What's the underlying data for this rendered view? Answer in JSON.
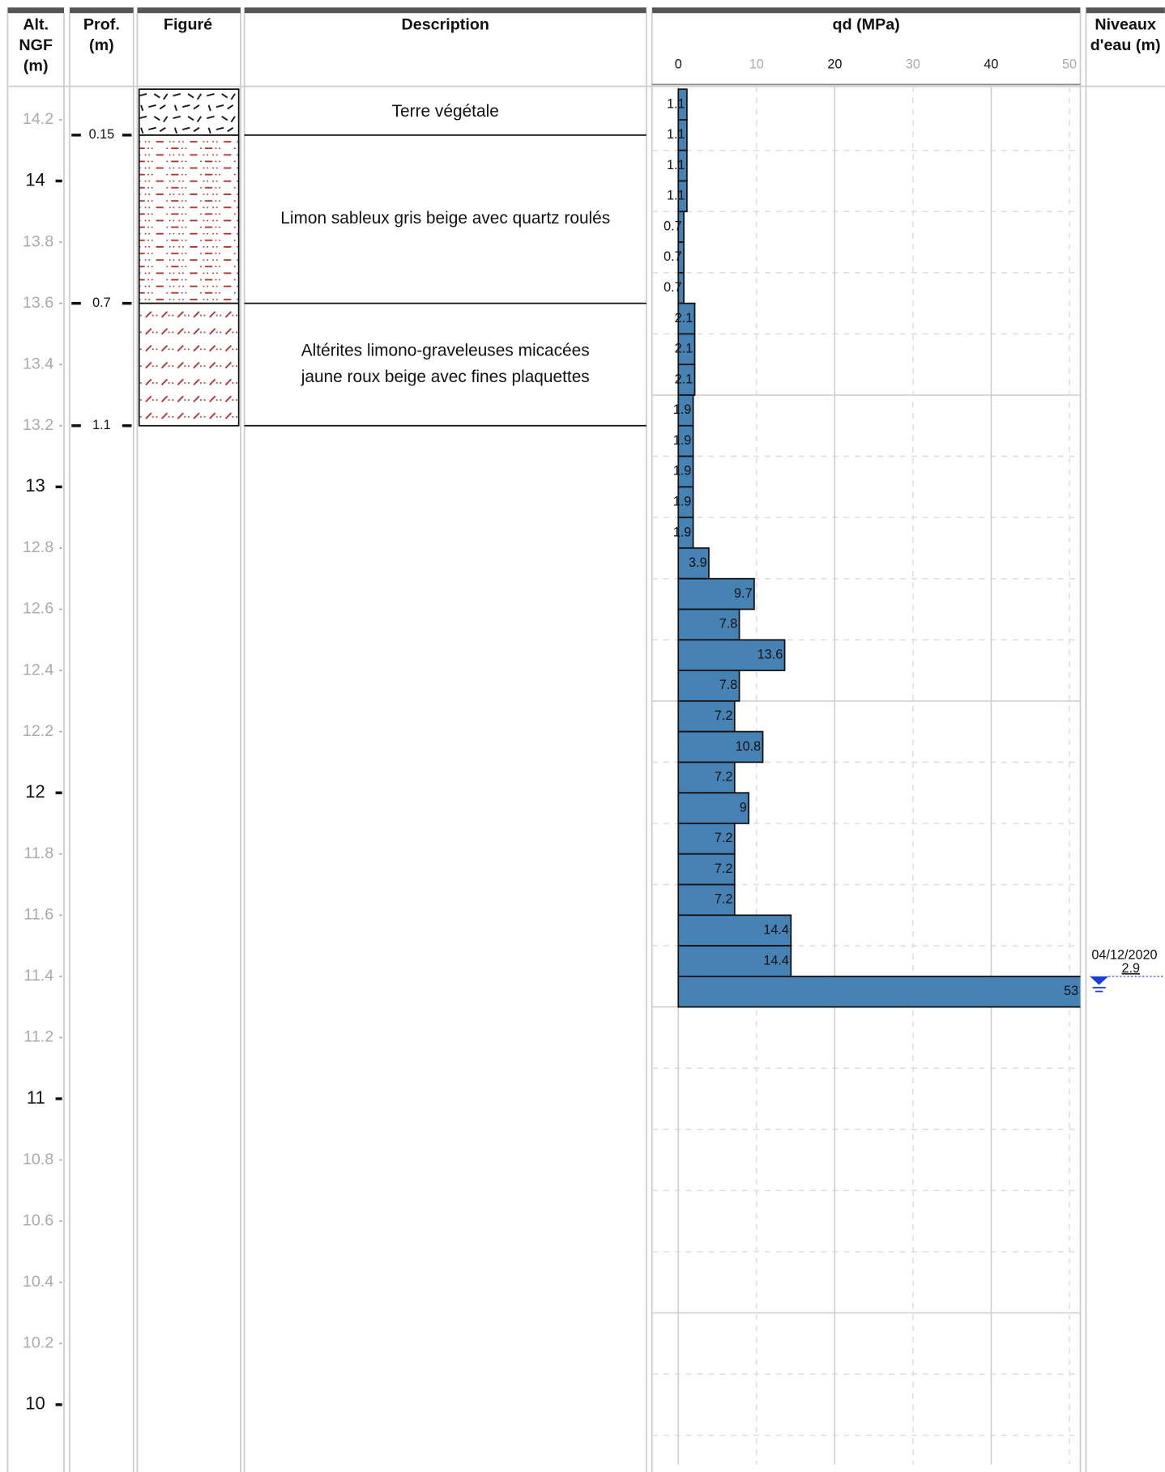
{
  "columns": {
    "altitude": [
      "Alt.",
      "NGF",
      "(m)"
    ],
    "depth": [
      "Prof.",
      "(m)"
    ],
    "figure": "Figuré",
    "description": "Description",
    "qd": "qd (MPa)",
    "water": [
      "Niveaux",
      "d'eau (m)"
    ]
  },
  "altitude_axis": {
    "ylim": [
      14.3,
      9.78
    ],
    "yticks": [
      14.2,
      14,
      13.8,
      13.6,
      13.4,
      13.2,
      13,
      12.8,
      12.6,
      12.4,
      12.2,
      12,
      11.8,
      11.6,
      11.4,
      11.2,
      11,
      10.8,
      10.6,
      10.4,
      10.2,
      10
    ]
  },
  "layers": [
    {
      "depth": 0.15,
      "description": [
        "Terre végétale"
      ]
    },
    {
      "depth": 0.7,
      "description": [
        "Limon sableux gris beige avec quartz roulés"
      ]
    },
    {
      "depth": 1.1,
      "description": [
        "Altérites limono-graveleuses micacées",
        "jaune roux beige avec fines plaquettes"
      ]
    }
  ],
  "qd_chart": {
    "type": "bar",
    "xlim": [
      0,
      51.4
    ],
    "xticks": [
      0,
      10,
      20,
      30,
      40,
      50
    ],
    "color": "#4682b4",
    "values": [
      1.1,
      1.1,
      1.1,
      1.1,
      0.7,
      0.7,
      0.7,
      2.1,
      2.1,
      2.1,
      1.9,
      1.9,
      1.9,
      1.9,
      1.9,
      3.9,
      9.7,
      7.8,
      13.6,
      7.8,
      7.2,
      10.8,
      7.2,
      9,
      7.2,
      7.2,
      7.2,
      14.4,
      14.4,
      53
    ]
  },
  "water_level": {
    "date": "04/12/2020",
    "depth": 2.9
  }
}
